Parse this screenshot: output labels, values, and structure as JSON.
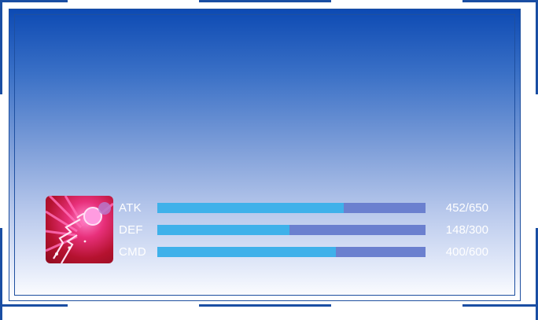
{
  "profile": {
    "avatar_icon": "burst-warrior-icon"
  },
  "stats": [
    {
      "label": "ATK",
      "value_text": "452/650",
      "current": 452,
      "max": 650
    },
    {
      "label": "DEF",
      "value_text": "148/300",
      "current": 148,
      "max": 300
    },
    {
      "label": "CMD",
      "value_text": "400/600",
      "current": 400,
      "max": 600
    }
  ],
  "colors": {
    "bar_track": "#6b80cf",
    "bar_fill": "#3fb1ea",
    "frame": "#1e4f9f"
  }
}
